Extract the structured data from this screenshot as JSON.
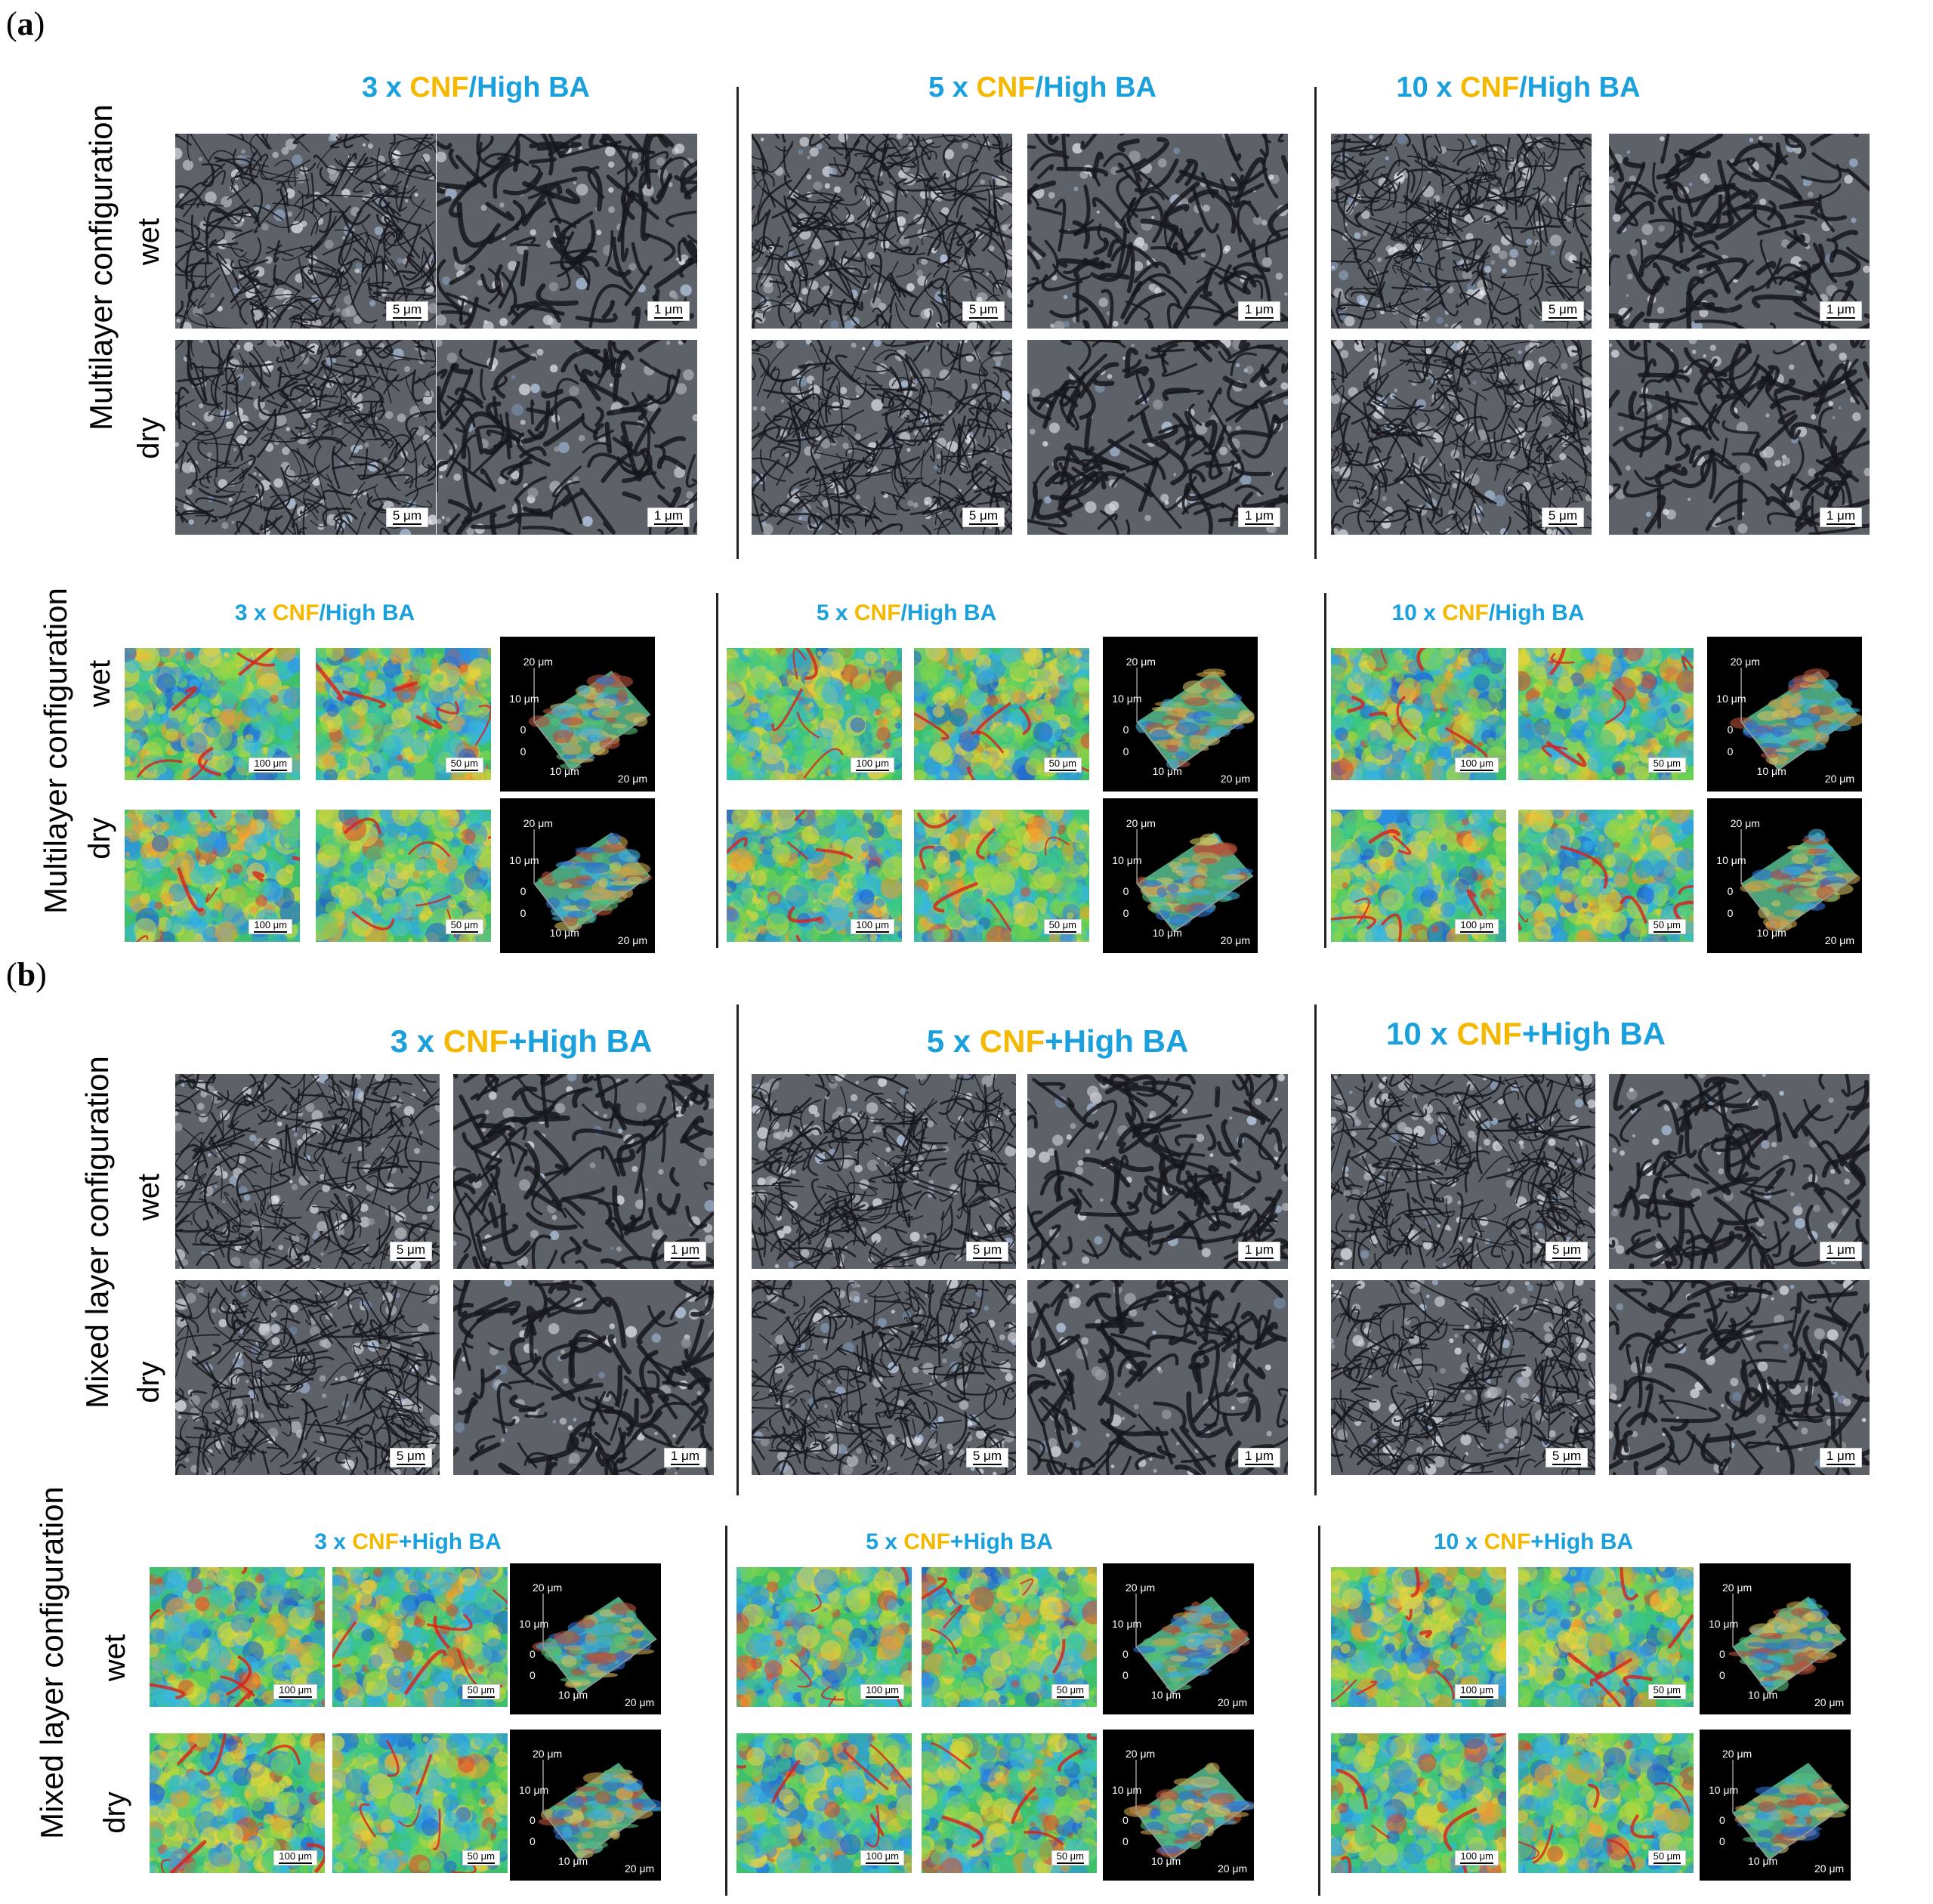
{
  "panels": {
    "a": "a",
    "b": "b"
  },
  "rows": {
    "a_sem": "Multilayer configuration",
    "a_cm": "Multilayer configuration",
    "b_sem": "Mixed layer configuration",
    "b_cm": "Mixed layer configuration"
  },
  "states": {
    "wet": "wet",
    "dry": "dry"
  },
  "groups_a": [
    {
      "mult": "3 x ",
      "cnf": "CNF",
      "rest": "/High BA"
    },
    {
      "mult": "5 x ",
      "cnf": "CNF",
      "rest": "/High BA"
    },
    {
      "mult": "10 x ",
      "cnf": "CNF",
      "rest": "/High BA"
    }
  ],
  "groups_b": [
    {
      "mult": "3 x ",
      "cnf": "CNF",
      "rest": "+High BA"
    },
    {
      "mult": "5 x ",
      "cnf": "CNF",
      "rest": "+High BA"
    },
    {
      "mult": "10 x ",
      "cnf": "CNF",
      "rest": "+High BA"
    }
  ],
  "scale": {
    "sem_low": "5 μm",
    "sem_high": "1 μm",
    "map_low": "100 μm",
    "map_high": "50 μm"
  },
  "axis3d": {
    "z_top": "20 μm",
    "z_mid": "10 μm",
    "z_zero": "0",
    "x0": "0",
    "x_mid": "10 μm",
    "x_far": "20 μm"
  },
  "colors": {
    "blue": "#1aa0dc",
    "cnf": "#f5b800"
  }
}
